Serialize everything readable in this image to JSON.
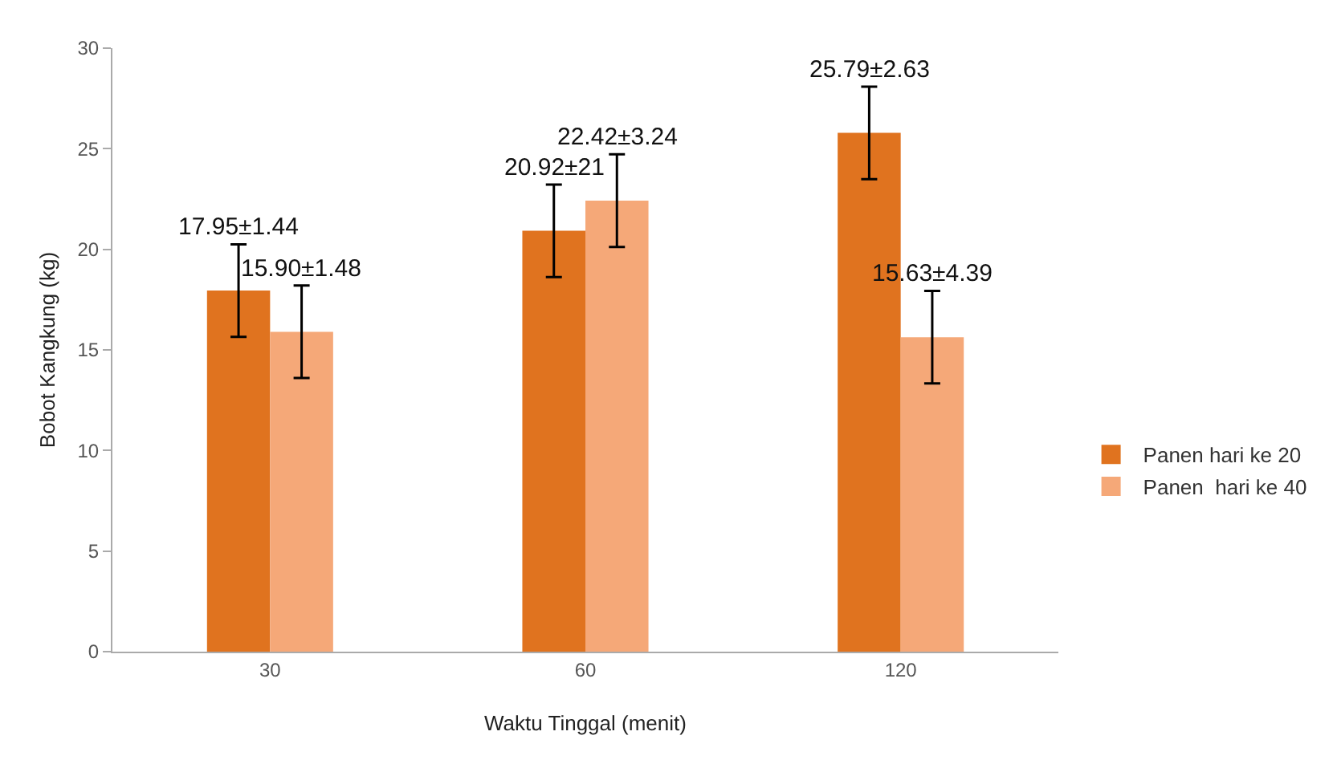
{
  "chart_data": {
    "type": "bar",
    "xlabel": "Waktu Tinggal (menit)",
    "ylabel": "Bobot Kangkung (kg)",
    "categories": [
      "30",
      "60",
      "120"
    ],
    "series": [
      {
        "name": "Panen hari ke 20",
        "color": "#e0731f",
        "values": [
          17.95,
          20.92,
          25.79
        ],
        "errors": [
          2.3,
          2.3,
          2.3
        ],
        "value_labels": [
          "17.95±1.44",
          "20.92±21",
          "25.79±2.63"
        ]
      },
      {
        "name": "Panen  hari ke 40",
        "color": "#f5a878",
        "values": [
          15.9,
          22.42,
          15.63
        ],
        "errors": [
          2.3,
          2.3,
          2.3
        ],
        "value_labels": [
          "15.90±1.48",
          "22.42±3.24",
          "15.63±4.39"
        ]
      }
    ],
    "ylim": [
      0,
      30
    ],
    "yticks": [
      0,
      5,
      10,
      15,
      20,
      25,
      30
    ],
    "grid": false,
    "legend": "right"
  }
}
